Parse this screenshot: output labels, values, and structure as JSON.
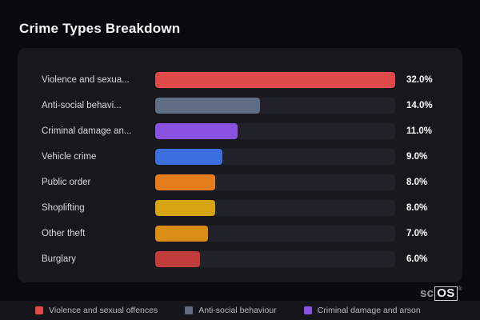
{
  "page": {
    "title": "Crime Types Breakdown"
  },
  "chart_data": {
    "type": "bar",
    "orientation": "horizontal",
    "title": "Crime Types Breakdown",
    "categories": [
      "Violence and sexua...",
      "Anti-social behavi...",
      "Criminal damage an...",
      "Vehicle crime",
      "Public order",
      "Shoplifting",
      "Other theft",
      "Burglary"
    ],
    "values": [
      32.0,
      14.0,
      11.0,
      9.0,
      8.0,
      8.0,
      7.0,
      6.0
    ],
    "value_labels": [
      "32.0%",
      "14.0%",
      "11.0%",
      "9.0%",
      "8.0%",
      "8.0%",
      "7.0%",
      "6.0%"
    ],
    "colors": [
      "#df4b4b",
      "#5f6e82",
      "#8a52e0",
      "#3b6fdd",
      "#e67d1d",
      "#d6a413",
      "#d98d14",
      "#c23c3c"
    ],
    "xlim": [
      0,
      32
    ],
    "grid": false,
    "legend_position": "bottom"
  },
  "legend": {
    "items": [
      {
        "label": "Violence and sexual offences",
        "color": "#df4b4b"
      },
      {
        "label": "Anti-social behaviour",
        "color": "#5f6e82"
      },
      {
        "label": "Criminal damage and arson",
        "color": "#8a52e0"
      }
    ]
  },
  "branding": {
    "prefix": "sc",
    "boxed": "OS",
    "registered": "®"
  },
  "colors": {
    "background": "#0a0a0e",
    "card": "#17171d",
    "track": "#21212a",
    "title_text": "#f5f5f8",
    "label_text": "#d8d8dc",
    "value_text": "#ffffff",
    "legend_text": "#b9b9c0"
  }
}
